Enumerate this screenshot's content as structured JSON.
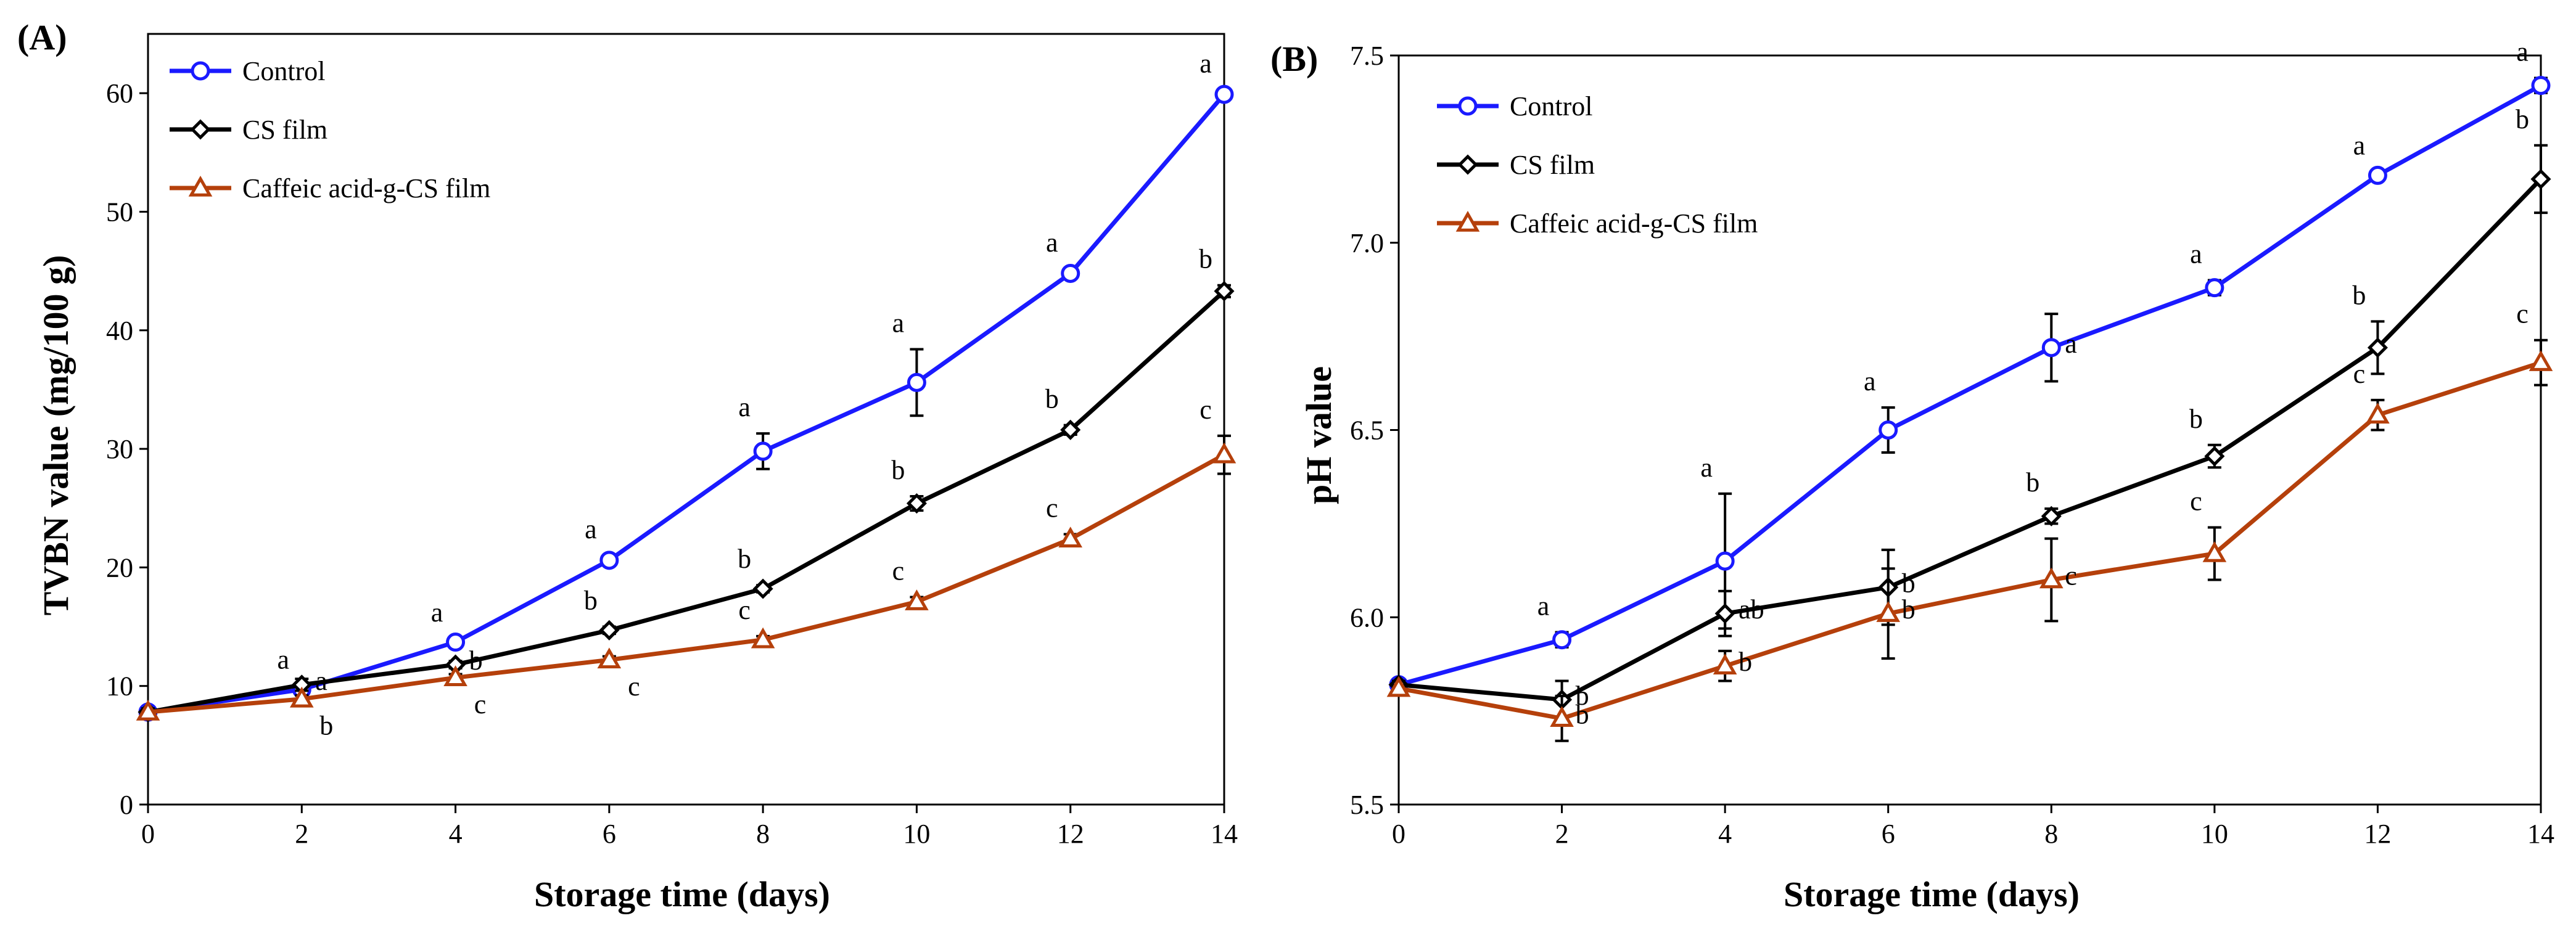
{
  "chart_data": [
    {
      "type": "line",
      "panel_label": "(A)",
      "title": "",
      "xlabel": "Storage time (days)",
      "ylabel": "TVBN value (mg/100 g)",
      "x": [
        0,
        2,
        4,
        6,
        8,
        10,
        12,
        14
      ],
      "xticks": [
        "0",
        "2",
        "4",
        "6",
        "8",
        "10",
        "12",
        "14"
      ],
      "xlim": [
        0,
        14
      ],
      "ylim": [
        0,
        65
      ],
      "yticks": [
        "0",
        "10",
        "20",
        "30",
        "40",
        "50",
        "60"
      ],
      "grid": false,
      "legend_position": "top-left",
      "series": [
        {
          "name": "Control",
          "color": "#1a1aff",
          "marker": "circle",
          "values": [
            7.8,
            9.7,
            13.7,
            20.6,
            29.8,
            35.6,
            44.8,
            59.9
          ],
          "errors": [
            0.3,
            0.3,
            0.3,
            0.4,
            1.5,
            2.8,
            0.4,
            0.4
          ],
          "sig": [
            "",
            "a",
            "a",
            "a",
            "a",
            "a",
            "a",
            "a"
          ],
          "sig_side": [
            "",
            "above",
            "above",
            "above",
            "above",
            "above",
            "above",
            "above"
          ]
        },
        {
          "name": "CS film",
          "color": "#000000",
          "marker": "diamond",
          "values": [
            7.8,
            10.1,
            11.8,
            14.7,
            18.2,
            25.4,
            31.6,
            43.3
          ],
          "errors": [
            0.3,
            0.5,
            0.3,
            0.3,
            0.3,
            0.6,
            0.4,
            0.5
          ],
          "sig": [
            "",
            "a",
            "b",
            "b",
            "b",
            "b",
            "b",
            "b"
          ],
          "sig_side": [
            "",
            "right",
            "right",
            "above",
            "above",
            "above",
            "above",
            "above"
          ]
        },
        {
          "name": "Caffeic acid-g-CS film",
          "color": "#b5400b",
          "marker": "triangle",
          "values": [
            7.8,
            8.9,
            10.7,
            12.2,
            13.9,
            17.1,
            22.4,
            29.5
          ],
          "errors": [
            0.3,
            0.3,
            0.3,
            0.3,
            0.3,
            0.4,
            0.4,
            1.6
          ],
          "sig": [
            "",
            "b",
            "c",
            "c",
            "c",
            "c",
            "c",
            "c"
          ],
          "sig_side": [
            "",
            "below",
            "below",
            "below",
            "above",
            "above",
            "above",
            "above"
          ]
        }
      ]
    },
    {
      "type": "line",
      "panel_label": "(B)",
      "title": "",
      "xlabel": "Storage time (days)",
      "ylabel": "pH value",
      "x": [
        0,
        2,
        4,
        6,
        8,
        10,
        12,
        14
      ],
      "xticks": [
        "0",
        "2",
        "4",
        "6",
        "8",
        "10",
        "12",
        "14"
      ],
      "xlim": [
        0,
        14
      ],
      "ylim": [
        5.5,
        7.5
      ],
      "yticks": [
        "5.5",
        "6.0",
        "6.5",
        "7.0",
        "7.5"
      ],
      "grid": false,
      "legend_position": "top-left",
      "series": [
        {
          "name": "Control",
          "color": "#1a1aff",
          "marker": "circle",
          "values": [
            5.82,
            5.94,
            6.15,
            6.5,
            6.72,
            6.88,
            7.18,
            7.42
          ],
          "errors": [
            0.01,
            0.02,
            0.18,
            0.06,
            0.09,
            0.02,
            0.01,
            0.02
          ],
          "sig": [
            "",
            "a",
            "a",
            "a",
            "a",
            "a",
            "a",
            "a"
          ],
          "sig_side": [
            "",
            "above",
            "above",
            "above",
            "right",
            "above",
            "above",
            "above"
          ]
        },
        {
          "name": "CS film",
          "color": "#000000",
          "marker": "diamond",
          "values": [
            5.82,
            5.78,
            6.01,
            6.08,
            6.27,
            6.43,
            6.72,
            7.17
          ],
          "errors": [
            0.01,
            0.05,
            0.06,
            0.1,
            0.02,
            0.03,
            0.07,
            0.09
          ],
          "sig": [
            "",
            "b",
            "ab",
            "b",
            "b",
            "b",
            "b",
            "b"
          ],
          "sig_side": [
            "",
            "right",
            "right",
            "right",
            "above",
            "above",
            "above",
            "above"
          ]
        },
        {
          "name": "Caffeic acid-g-CS film",
          "color": "#b5400b",
          "marker": "triangle",
          "values": [
            5.81,
            5.73,
            5.87,
            6.01,
            6.1,
            6.17,
            6.54,
            6.68
          ],
          "errors": [
            0.01,
            0.06,
            0.04,
            0.12,
            0.11,
            0.07,
            0.04,
            0.06
          ],
          "sig": [
            "",
            "b",
            "b",
            "b",
            "c",
            "c",
            "c",
            "c"
          ],
          "sig_side": [
            "",
            "right",
            "right",
            "right",
            "right",
            "above",
            "above",
            "above"
          ]
        }
      ]
    }
  ]
}
